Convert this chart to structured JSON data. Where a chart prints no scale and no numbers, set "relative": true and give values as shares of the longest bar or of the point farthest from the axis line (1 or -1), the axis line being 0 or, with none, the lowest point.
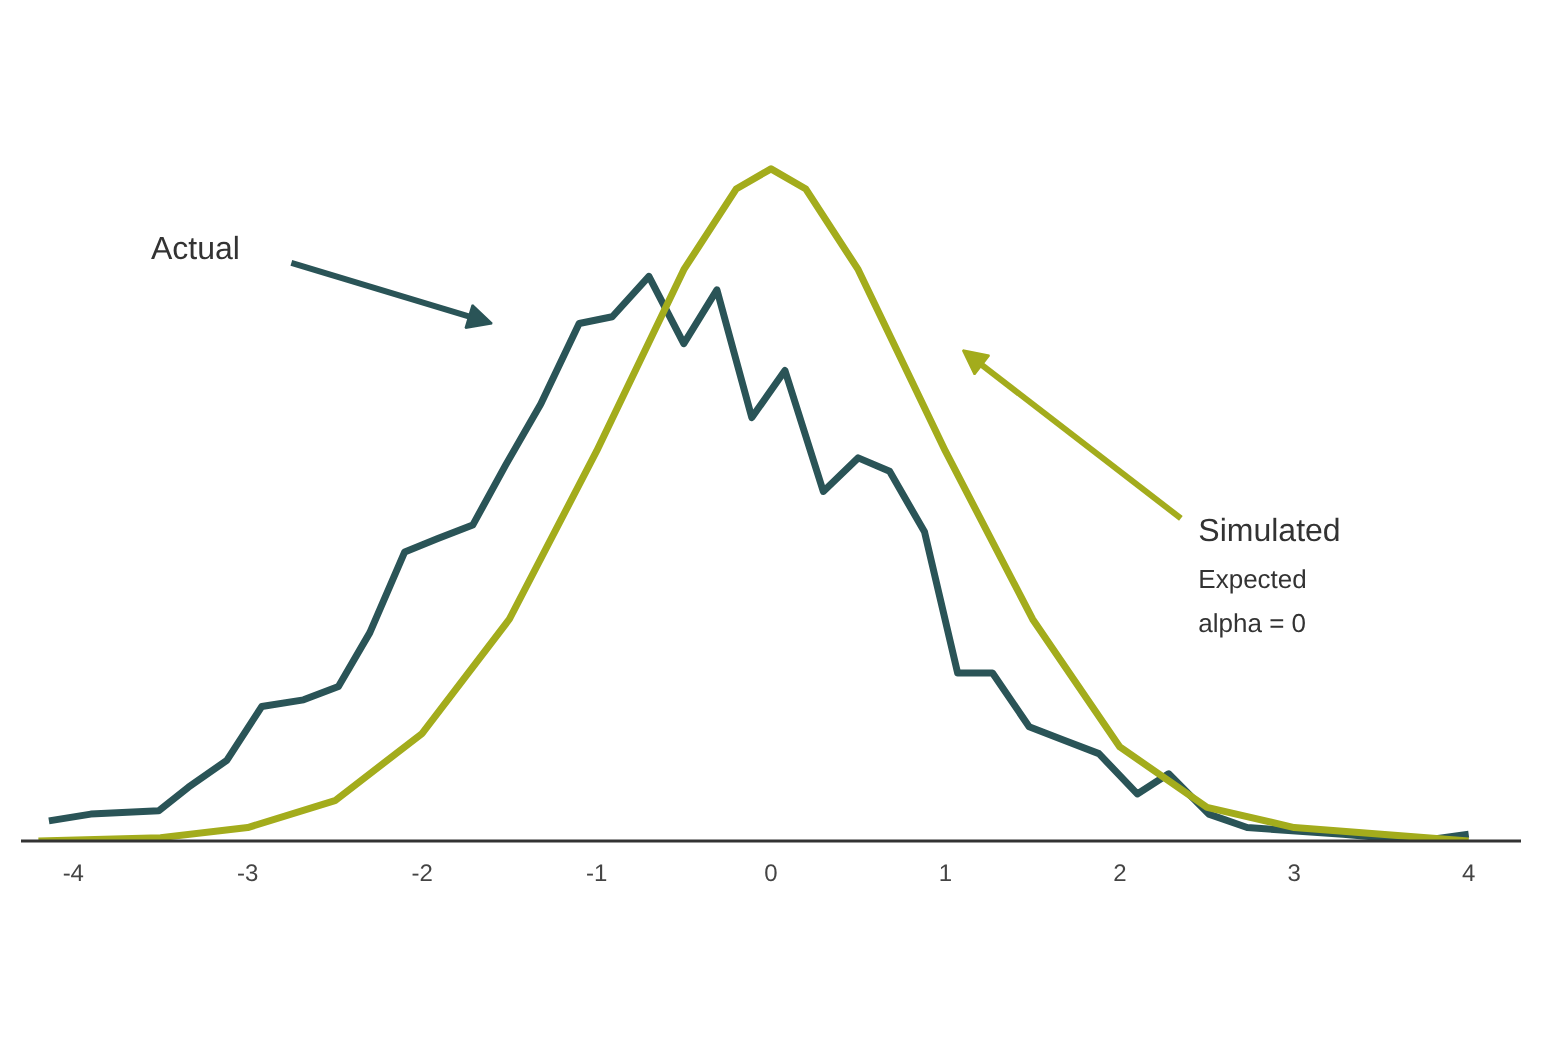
{
  "chart_data": {
    "type": "line",
    "relative": true,
    "xlim": [
      -4.3,
      4.3
    ],
    "xticks": [
      -4,
      -3,
      -2,
      -1,
      0,
      1,
      2,
      3,
      4
    ],
    "series": [
      {
        "color": "#2a5457",
        "x": [
          -4.14,
          -3.9,
          -3.51,
          -3.34,
          -3.12,
          -2.92,
          -2.68,
          -2.48,
          -2.3,
          -2.1,
          -1.91,
          -1.71,
          -1.52,
          -1.32,
          -1.1,
          -0.91,
          -0.7,
          -0.5,
          -0.31,
          -0.11,
          0.08,
          0.3,
          0.5,
          0.68,
          0.88,
          1.07,
          1.27,
          1.48,
          1.68,
          1.88,
          2.1,
          2.28,
          2.51,
          2.73,
          3.28,
          3.72,
          4.0
        ],
        "values": [
          0.03,
          0.04,
          0.045,
          0.08,
          0.12,
          0.2,
          0.21,
          0.23,
          0.31,
          0.43,
          0.45,
          0.47,
          0.56,
          0.65,
          0.77,
          0.78,
          0.84,
          0.74,
          0.82,
          0.63,
          0.7,
          0.52,
          0.57,
          0.55,
          0.46,
          0.25,
          0.25,
          0.17,
          0.15,
          0.13,
          0.07,
          0.1,
          0.04,
          0.02,
          0.01,
          0.0,
          0.01
        ]
      },
      {
        "color": "#a3ac1c",
        "x": [
          -4.2,
          -3.5,
          -3.0,
          -2.5,
          -2.0,
          -1.5,
          -1.0,
          -0.5,
          -0.2,
          0.0,
          0.2,
          0.5,
          1.0,
          1.5,
          2.0,
          2.5,
          3.0,
          3.5,
          4.0
        ],
        "values": [
          0.0,
          0.005,
          0.02,
          0.06,
          0.16,
          0.33,
          0.58,
          0.85,
          0.97,
          1.0,
          0.97,
          0.85,
          0.58,
          0.33,
          0.14,
          0.05,
          0.02,
          0.01,
          0.0
        ]
      }
    ],
    "annotations": [
      "Actual",
      "Simulated",
      "Expected",
      "alpha = 0"
    ],
    "grid": false
  }
}
